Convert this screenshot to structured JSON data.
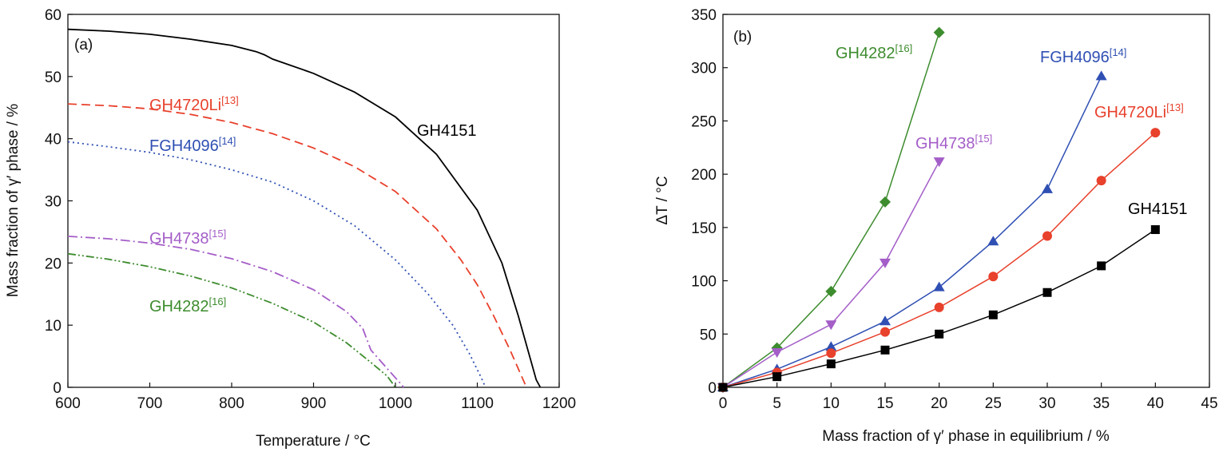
{
  "chart_data": [
    {
      "type": "line",
      "panel_label": "(a)",
      "xlabel": "Temperature / °C",
      "ylabel": "Mass fraction of γ′ phase / %",
      "xlim": [
        600,
        1200
      ],
      "ylim": [
        0,
        60
      ],
      "xticks": [
        "600",
        "700",
        "800",
        "900",
        "1000",
        "1100",
        "1200"
      ],
      "yticks": [
        "0",
        "10",
        "20",
        "30",
        "40",
        "50",
        "60"
      ],
      "grid": false,
      "series": [
        {
          "name": "GH4151",
          "ref": "",
          "color": "#000000",
          "dash": "solid",
          "x": [
            600,
            650,
            700,
            750,
            800,
            830,
            840,
            850,
            900,
            950,
            1000,
            1050,
            1100,
            1130,
            1150,
            1165,
            1172,
            1177
          ],
          "y": [
            57.6,
            57.3,
            56.8,
            56.0,
            55.0,
            54.0,
            53.5,
            52.8,
            50.5,
            47.5,
            43.5,
            37.5,
            28.5,
            20.0,
            11.5,
            4.5,
            1.2,
            0
          ]
        },
        {
          "name": "GH4720Li",
          "ref": "[13]",
          "color": "#e8412c",
          "dash": "dashed",
          "x": [
            600,
            650,
            700,
            750,
            800,
            850,
            900,
            950,
            1000,
            1050,
            1080,
            1100,
            1120,
            1140,
            1155,
            1160
          ],
          "y": [
            45.6,
            45.3,
            44.8,
            43.9,
            42.6,
            40.8,
            38.5,
            35.5,
            31.5,
            25.5,
            20.5,
            16.5,
            11.5,
            6.0,
            1.5,
            0
          ]
        },
        {
          "name": "FGH4096",
          "ref": "[14]",
          "color": "#2f4fb3",
          "dash": "dotted",
          "x": [
            600,
            650,
            700,
            750,
            800,
            850,
            900,
            950,
            1000,
            1040,
            1070,
            1090,
            1105,
            1110
          ],
          "y": [
            39.5,
            38.7,
            37.8,
            36.6,
            35.0,
            33.0,
            30.0,
            26.0,
            20.5,
            15.0,
            10.0,
            5.5,
            1.5,
            0
          ]
        },
        {
          "name": "GH4738",
          "ref": "[15]",
          "color": "#a45ec8",
          "dash": "dashdot",
          "x": [
            600,
            650,
            700,
            750,
            800,
            850,
            900,
            940,
            960,
            970,
            990,
            1005,
            1010
          ],
          "y": [
            24.3,
            23.9,
            23.2,
            22.2,
            20.7,
            18.6,
            15.7,
            12.2,
            9.5,
            6.0,
            3.0,
            0.8,
            0
          ]
        },
        {
          "name": "GH4282",
          "ref": "[16]",
          "color": "#3d8c2e",
          "dash": "dashdotdot",
          "x": [
            600,
            650,
            700,
            750,
            800,
            850,
            900,
            940,
            970,
            990,
            1000
          ],
          "y": [
            21.5,
            20.6,
            19.4,
            17.9,
            16.0,
            13.5,
            10.5,
            7.2,
            4.0,
            1.8,
            0
          ]
        }
      ]
    },
    {
      "type": "line",
      "panel_label": "(b)",
      "xlabel": "Mass fraction of γ′ phase in equilibrium / %",
      "ylabel": "ΔT / °C",
      "xlim": [
        0,
        45
      ],
      "ylim": [
        0,
        350
      ],
      "xticks": [
        "0",
        "5",
        "10",
        "15",
        "20",
        "25",
        "30",
        "35",
        "40",
        "45"
      ],
      "yticks": [
        "0",
        "50",
        "100",
        "150",
        "200",
        "250",
        "300",
        "350"
      ],
      "grid": false,
      "series": [
        {
          "name": "GH4282",
          "ref": "[16]",
          "color": "#3d8c2e",
          "marker": "diamond",
          "x": [
            0,
            5,
            10,
            15,
            20
          ],
          "y": [
            0,
            37,
            90,
            174,
            333
          ]
        },
        {
          "name": "GH4738",
          "ref": "[15]",
          "color": "#a45ec8",
          "marker": "triangle-down",
          "x": [
            0,
            5,
            10,
            15,
            20
          ],
          "y": [
            0,
            33,
            59,
            117,
            212
          ]
        },
        {
          "name": "FGH4096",
          "ref": "[14]",
          "color": "#2f4fb3",
          "marker": "triangle-up",
          "x": [
            0,
            5,
            10,
            15,
            20,
            25,
            30,
            35
          ],
          "y": [
            0,
            17,
            38,
            62,
            94,
            137,
            186,
            292
          ]
        },
        {
          "name": "GH4720Li",
          "ref": "[13]",
          "color": "#e8412c",
          "marker": "circle",
          "x": [
            0,
            5,
            10,
            15,
            20,
            25,
            30,
            35,
            40
          ],
          "y": [
            0,
            14,
            32,
            52,
            75,
            104,
            142,
            194,
            239
          ]
        },
        {
          "name": "GH4151",
          "ref": "",
          "color": "#000000",
          "marker": "square",
          "x": [
            0,
            5,
            10,
            15,
            20,
            25,
            30,
            35,
            40
          ],
          "y": [
            0,
            10,
            22,
            35,
            50,
            68,
            89,
            114,
            148
          ]
        }
      ]
    }
  ]
}
